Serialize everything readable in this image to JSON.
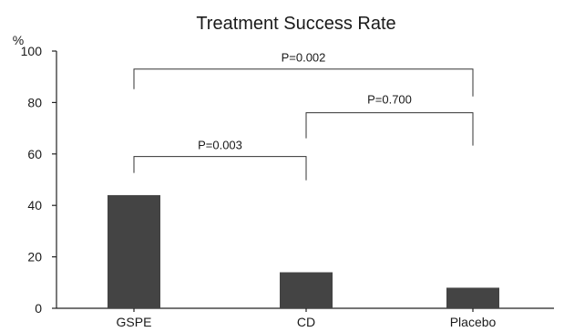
{
  "chart_data": {
    "type": "bar",
    "title": "Treatment Success Rate",
    "ylabel": "%",
    "xlabel": "",
    "categories": [
      "GSPE",
      "CD",
      "Placebo"
    ],
    "values": [
      44,
      14,
      8
    ],
    "ylim": [
      0,
      100
    ],
    "yticks": [
      0,
      20,
      40,
      60,
      80,
      100
    ],
    "grid": false,
    "bar_color": "#444444",
    "annotations": [
      {
        "label": "P=0.003",
        "from": "GSPE",
        "to": "CD",
        "level": 59
      },
      {
        "label": "P=0.700",
        "from": "CD",
        "to": "Placebo",
        "level": 76
      },
      {
        "label": "P=0.002",
        "from": "GSPE",
        "to": "Placebo",
        "level": 93
      }
    ]
  }
}
